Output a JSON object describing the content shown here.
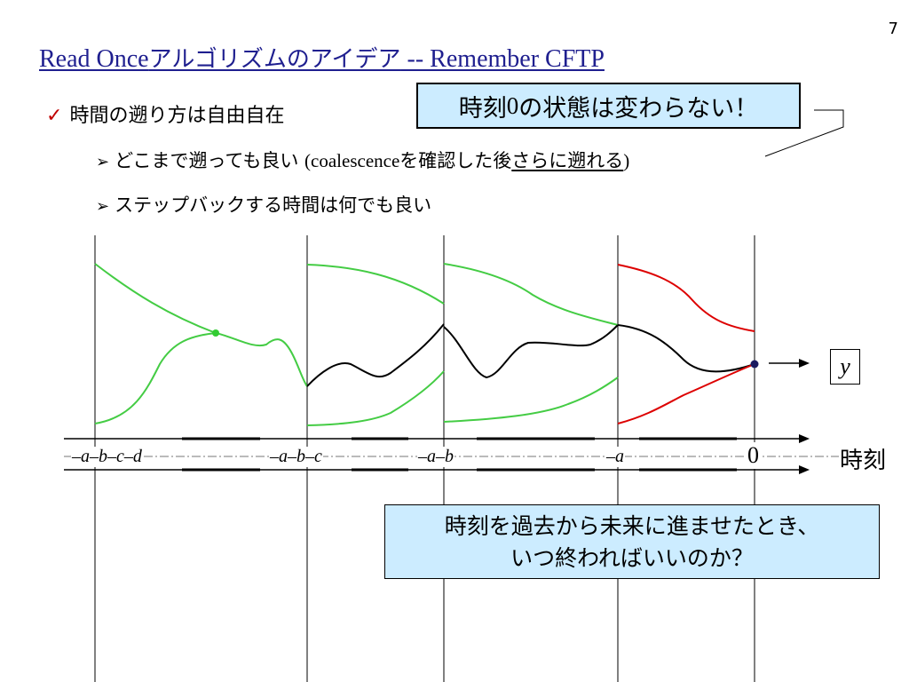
{
  "slide_number": "7",
  "title": {
    "prefix": "Read Once",
    "japanese": "アルゴリズムのアイデア",
    "suffix": " -- Remember CFTP"
  },
  "bullet_main": "時間の遡り方は自由自在",
  "sub_bullet_1": {
    "text_a": "どこまで遡っても良い ",
    "text_b": "(coalescence",
    "text_c": "を確認した後",
    "text_underlined": "さらに遡れる",
    "text_d": ")"
  },
  "sub_bullet_2": "ステップバックする時間は何でも良い",
  "callout_top": {
    "text_a": "時刻",
    "text_zero": "0",
    "text_b": "の状態は変わらない！"
  },
  "callout_bottom": {
    "line1": "時刻を過去から未来に進ませたとき、",
    "line2": "いつ終わればいいのか？"
  },
  "diagram": {
    "time_ticks": [
      "–a–b–c–d",
      "–a–b–c",
      "–a–b",
      "–a"
    ],
    "zero_label": "0",
    "time_axis_label": "時刻",
    "output_label": "y",
    "colors": {
      "green": "#44cc44",
      "red": "#dd0000",
      "black": "#000000",
      "coalesce_dot_green": "#33cc33",
      "coalesce_dot_navy": "#1a1a60"
    }
  }
}
